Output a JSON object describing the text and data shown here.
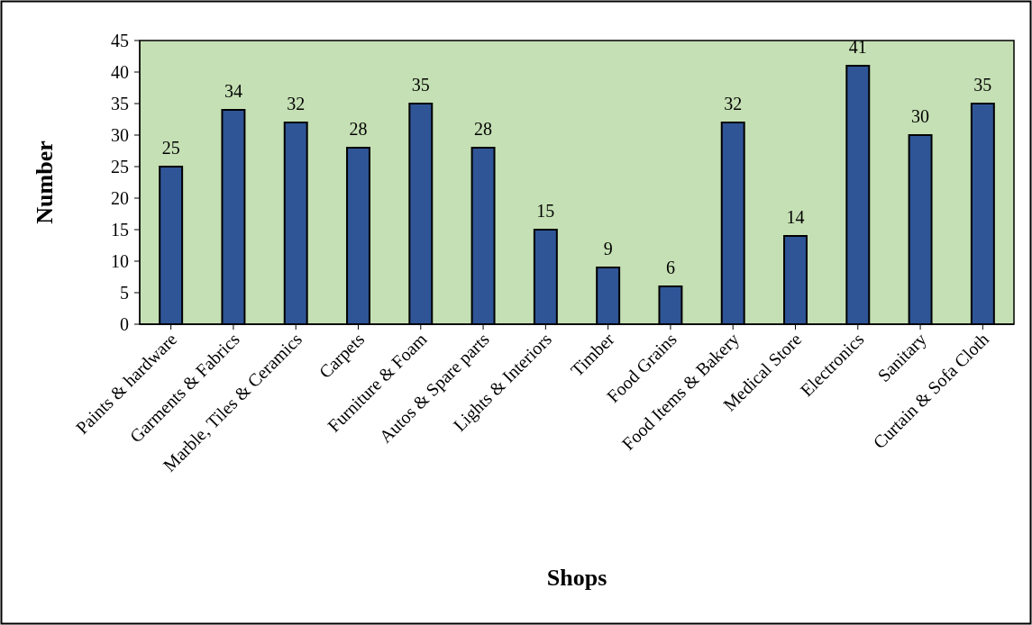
{
  "chart_data": {
    "type": "bar",
    "xlabel": "Shops",
    "ylabel": "Number",
    "categories": [
      "Paints & hardware",
      "Garments & Fabrics",
      "Marble, Tiles & Ceramics",
      "Carpets",
      "Furniture & Foam",
      "Autos & Spare parts",
      "Lights & Interiors",
      "Timber",
      "Food Grains",
      "Food Items & Bakery",
      "Medical Store",
      "Electronics",
      "Sanitary",
      "Curtain & Sofa Cloth"
    ],
    "values": [
      25,
      34,
      32,
      28,
      35,
      28,
      15,
      9,
      6,
      32,
      14,
      41,
      30,
      35
    ],
    "color": "#2f5597",
    "ylim": [
      0,
      45
    ],
    "yticks": [
      0,
      5,
      10,
      15,
      20,
      25,
      30,
      35,
      40,
      45
    ],
    "data_labels": true,
    "grid": false
  }
}
